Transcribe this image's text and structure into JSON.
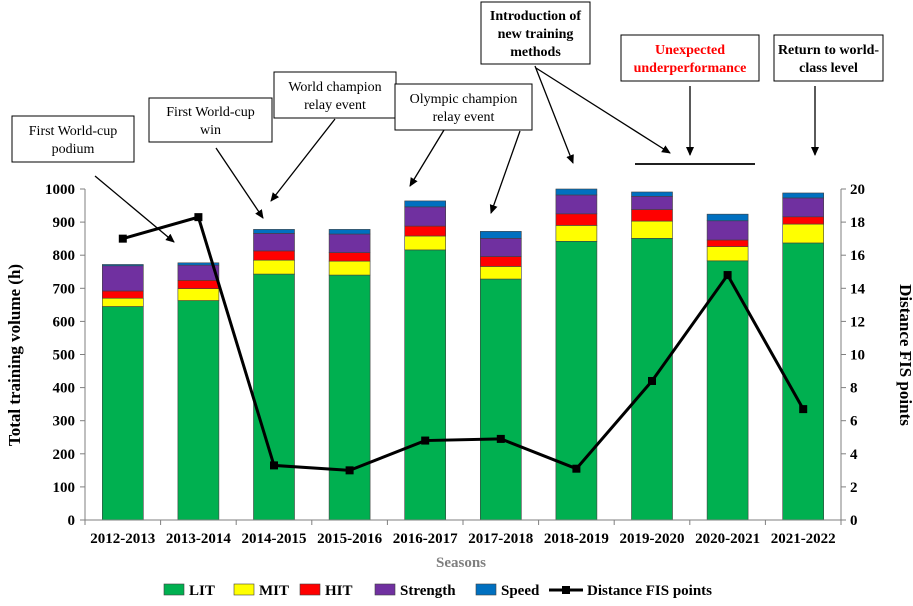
{
  "chart_data": {
    "type": "bar",
    "stacked": true,
    "categories": [
      "2012-2013",
      "2013-2014",
      "2014-2015",
      "2015-2016",
      "2016-2017",
      "2017-2018",
      "2018-2019",
      "2019-2020",
      "2020-2021",
      "2021-2022"
    ],
    "series": [
      {
        "name": "LIT",
        "color": "#00b050",
        "values": [
          645,
          663,
          743,
          740,
          816,
          728,
          842,
          851,
          783,
          837
        ]
      },
      {
        "name": "MIT",
        "color": "#ffff00",
        "values": [
          25,
          36,
          42,
          42,
          42,
          38,
          48,
          52,
          43,
          57
        ]
      },
      {
        "name": "HIT",
        "color": "#ff0000",
        "values": [
          22,
          25,
          28,
          26,
          30,
          30,
          35,
          35,
          20,
          22
        ]
      },
      {
        "name": "Strength",
        "color": "#7030a0",
        "values": [
          76,
          46,
          53,
          56,
          58,
          55,
          57,
          40,
          58,
          57
        ]
      },
      {
        "name": "Speed",
        "color": "#0070c0",
        "values": [
          4,
          7,
          12,
          14,
          18,
          21,
          18,
          13,
          20,
          15
        ]
      }
    ],
    "line": {
      "name": "Distance FIS points",
      "color": "#000000",
      "values": [
        17.0,
        18.3,
        3.3,
        3.0,
        4.8,
        4.9,
        3.1,
        8.4,
        14.8,
        6.7
      ]
    },
    "xlabel": "Seasons",
    "ylabel": "Total training volume (h)",
    "y2label": "Distance FIS points",
    "ylim": [
      0,
      1000
    ],
    "y2lim": [
      0,
      20
    ],
    "yticks": [
      "0",
      "100",
      "200",
      "300",
      "400",
      "500",
      "600",
      "700",
      "800",
      "900",
      "1000"
    ],
    "y2ticks": [
      "0",
      "2",
      "4",
      "6",
      "8",
      "10",
      "12",
      "14",
      "16",
      "18",
      "20"
    ],
    "annotations": [
      {
        "id": "a1",
        "lines": [
          "First World-cup",
          "podium"
        ],
        "style": "normal"
      },
      {
        "id": "a2",
        "lines": [
          "First World-cup",
          "win"
        ],
        "style": "normal"
      },
      {
        "id": "a3",
        "lines": [
          "World champion",
          "relay event"
        ],
        "style": "normal"
      },
      {
        "id": "a4",
        "lines": [
          "Olympic champion",
          "relay event"
        ],
        "style": "normal"
      },
      {
        "id": "a5",
        "lines": [
          "Introduction of",
          "new training",
          "methods"
        ],
        "style": "bold"
      },
      {
        "id": "a6",
        "lines": [
          "Unexpected",
          "underperformance"
        ],
        "style": "red"
      },
      {
        "id": "a7",
        "lines": [
          "Return to world-",
          "class level"
        ],
        "style": "bold"
      }
    ],
    "legend_position": "bottom"
  }
}
